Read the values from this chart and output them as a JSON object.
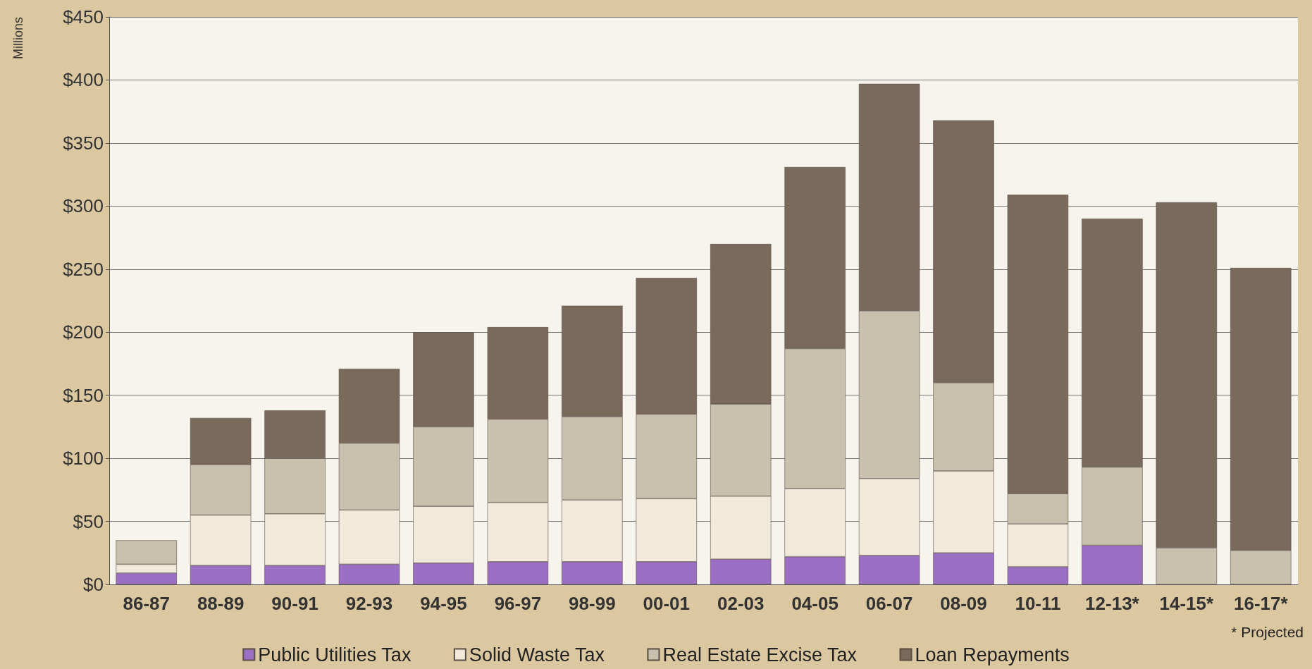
{
  "chart_data": {
    "type": "bar",
    "stacked": true,
    "ylabel": "Millions",
    "categories": [
      "86-87",
      "88-89",
      "90-91",
      "92-93",
      "94-95",
      "96-97",
      "98-99",
      "00-01",
      "02-03",
      "04-05",
      "06-07",
      "08-09",
      "10-11",
      "12-13*",
      "14-15*",
      "16-17*"
    ],
    "series": [
      {
        "name": "Public Utilities Tax",
        "color": "#9b6fc4",
        "values": [
          9,
          15,
          15,
          16,
          17,
          18,
          18,
          18,
          20,
          22,
          23,
          25,
          14,
          31,
          0,
          0
        ]
      },
      {
        "name": "Solid Waste Tax",
        "color": "#f1eadb",
        "values": [
          7,
          40,
          41,
          43,
          45,
          47,
          49,
          50,
          50,
          54,
          61,
          65,
          34,
          0,
          0,
          0
        ]
      },
      {
        "name": "Real Estate Excise Tax",
        "color": "#c9c0ad",
        "values": [
          19,
          40,
          44,
          53,
          63,
          66,
          66,
          67,
          73,
          111,
          133,
          70,
          24,
          62,
          29,
          27
        ]
      },
      {
        "name": "Loan Repayments",
        "color": "#7a6a5b",
        "values": [
          0,
          37,
          38,
          59,
          75,
          73,
          88,
          108,
          127,
          144,
          180,
          208,
          237,
          197,
          274,
          224
        ]
      }
    ],
    "ylim": [
      0,
      450
    ],
    "yticks": [
      {
        "value": 0,
        "label": "$0"
      },
      {
        "value": 50,
        "label": "$50"
      },
      {
        "value": 100,
        "label": "$100"
      },
      {
        "value": 150,
        "label": "$150"
      },
      {
        "value": 200,
        "label": "$200"
      },
      {
        "value": 250,
        "label": "$250"
      },
      {
        "value": 300,
        "label": "$300"
      },
      {
        "value": 350,
        "label": "$350"
      },
      {
        "value": 400,
        "label": "$400"
      },
      {
        "value": 450,
        "label": "$450"
      }
    ],
    "grid": "y",
    "legend": "bottom",
    "annotations": [
      "* Projected"
    ]
  }
}
